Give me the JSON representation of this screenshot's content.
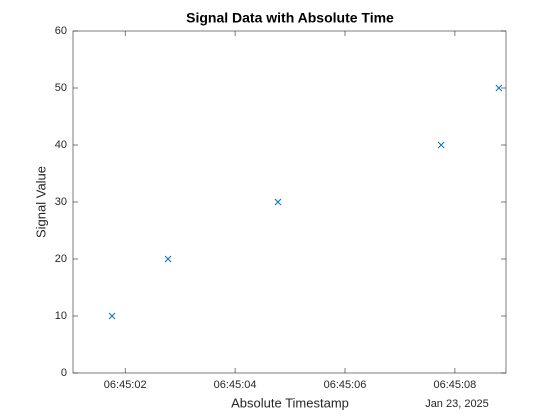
{
  "chart_data": {
    "type": "scatter",
    "title": "Signal Data with Absolute Time",
    "x_label": "Absolute Timestamp",
    "y_label": "Signal Value",
    "x_secondary_label": "Jan 23, 2025",
    "x": [
      "06:45:01.76",
      "06:45:02.78",
      "06:45:04.78",
      "06:45:07.75",
      "06:45:08.80"
    ],
    "values": [
      10,
      20,
      30,
      40,
      50
    ],
    "color": "#0072bd",
    "marker": "x",
    "xlim": [
      "06:45:01.05",
      "06:45:08.93"
    ],
    "xticks": [
      "06:45:02",
      "06:45:04",
      "06:45:06",
      "06:45:08"
    ],
    "ylim": [
      0,
      60
    ],
    "yticks": [
      0,
      10,
      20,
      30,
      40,
      50,
      60
    ],
    "grid": false
  }
}
